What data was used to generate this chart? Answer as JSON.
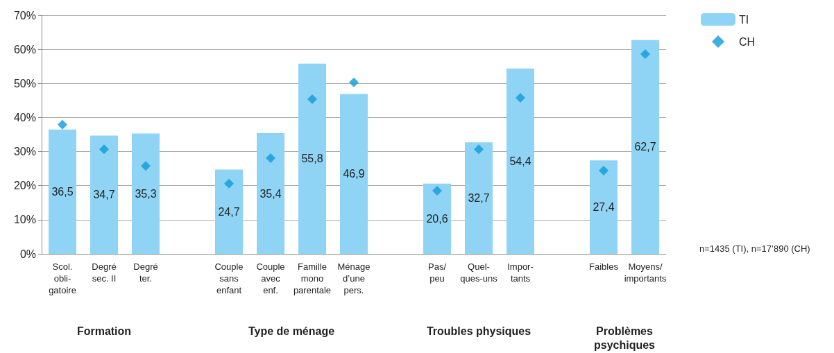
{
  "chart_data": {
    "type": "bar",
    "categories": [
      "Scol.\nobli-\ngatoire",
      "Degré\nsec. II",
      "Degré\nter.",
      null,
      "Couple\nsans\nenfant",
      "Couple\navec\nenf.",
      "Famille\nmono\nparentale",
      "Ménage\nd’une\npers.",
      null,
      "Pas/\npeu",
      "Quel-\nques-uns",
      "Impor-\ntants",
      null,
      "Faibles",
      "Moyens/\nimportants"
    ],
    "series": [
      {
        "name": "TI",
        "color": "#8fd4f5",
        "values": [
          36.5,
          34.7,
          35.3,
          null,
          24.7,
          35.4,
          55.8,
          46.9,
          null,
          20.6,
          32.7,
          54.4,
          null,
          27.4,
          62.7
        ],
        "value_labels": [
          "36,5",
          "34,7",
          "35,3",
          null,
          "24,7",
          "35,4",
          "55,8",
          "46,9",
          null,
          "20,6",
          "32,7",
          "54,4",
          null,
          "27,4",
          "62,7"
        ]
      },
      {
        "name": "CH",
        "type": "scatter",
        "marker": "diamond",
        "color": "#0e9bd9",
        "values": [
          37.9,
          30.7,
          25.8,
          null,
          20.6,
          28.1,
          45.4,
          50.3,
          null,
          18.5,
          30.7,
          45.8,
          null,
          24.4,
          58.6
        ]
      }
    ],
    "ylim": [
      0,
      70
    ],
    "yticks": [
      {
        "value": 0,
        "label": "0%"
      },
      {
        "value": 10,
        "label": "10%"
      },
      {
        "value": 20,
        "label": "20%"
      },
      {
        "value": 30,
        "label": "30%"
      },
      {
        "value": 40,
        "label": "40%"
      },
      {
        "value": 50,
        "label": "50%"
      },
      {
        "value": 60,
        "label": "60%"
      },
      {
        "value": 70,
        "label": "70%"
      }
    ],
    "grid": "y",
    "legend": "top right",
    "annotations": [
      "Formation",
      "Type de ménage",
      "Troubles physiques",
      "Problèmes\npsychiques",
      "n=1435 (TI), n=17’890 (CH)"
    ]
  }
}
